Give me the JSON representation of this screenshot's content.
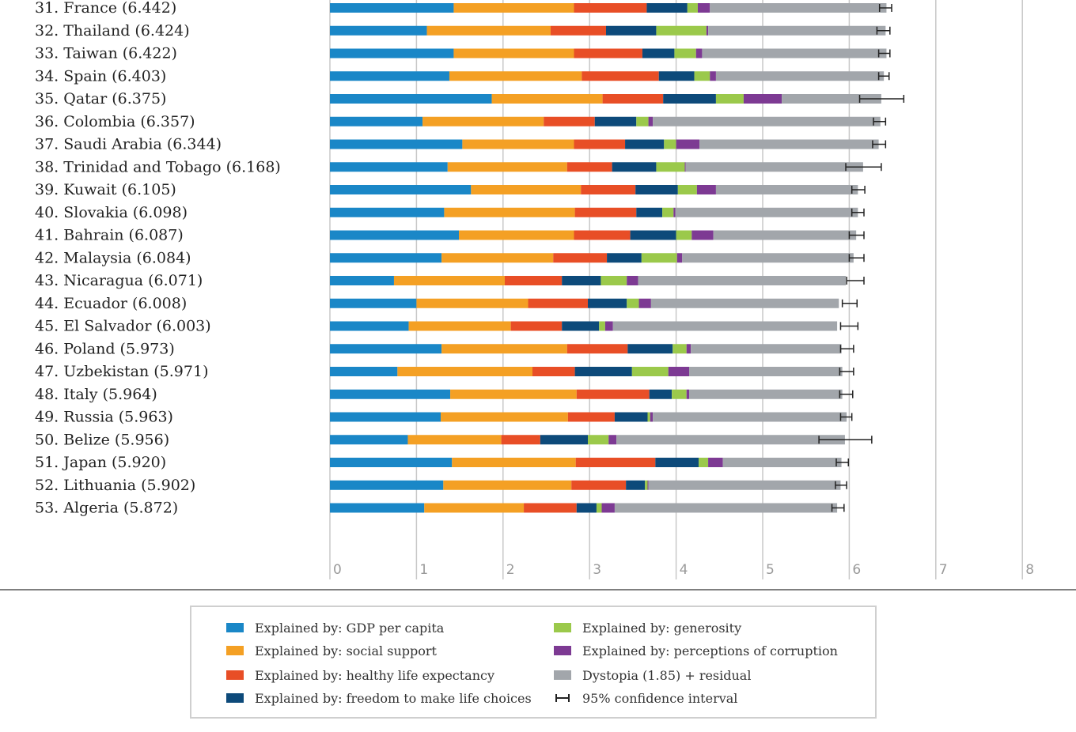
{
  "colors": {
    "gdp": "#1a87c7",
    "social": "#f4a024",
    "health": "#e84e26",
    "freedom": "#0d4a7a",
    "generosity": "#9bc94b",
    "corruption": "#7d3a93",
    "dystopia": "#a2a6ab",
    "ci": "#222222",
    "grid": "#c8c8c8",
    "axis_line": "#555555"
  },
  "chart_data": {
    "type": "bar",
    "orientation": "horizontal",
    "stacked": true,
    "xlim": [
      0,
      8
    ],
    "x_ticks": [
      "0",
      "1",
      "2",
      "3",
      "4",
      "5",
      "6",
      "7",
      "8"
    ],
    "grid": true,
    "legend_position": "bottom",
    "series_keys": [
      "gdp",
      "social",
      "health",
      "freedom",
      "generosity",
      "corruption",
      "dystopia"
    ],
    "countries": [
      {
        "label": "31.  France (6.442)",
        "score": 6.442,
        "ci": [
          6.35,
          6.49
        ],
        "values": [
          1.43,
          1.39,
          0.84,
          0.47,
          0.12,
          0.14,
          2.04
        ]
      },
      {
        "label": "32.  Thailand (6.424)",
        "score": 6.424,
        "ci": [
          6.32,
          6.47
        ],
        "values": [
          1.12,
          1.43,
          0.64,
          0.58,
          0.58,
          0.02,
          2.05
        ]
      },
      {
        "label": "33.  Taiwan (6.422)",
        "score": 6.422,
        "ci": [
          6.34,
          6.47
        ],
        "values": [
          1.43,
          1.39,
          0.79,
          0.37,
          0.25,
          0.07,
          2.13
        ]
      },
      {
        "label": "34.  Spain (6.403)",
        "score": 6.403,
        "ci": [
          6.34,
          6.46
        ],
        "values": [
          1.38,
          1.53,
          0.89,
          0.41,
          0.18,
          0.07,
          1.94
        ]
      },
      {
        "label": "35.  Qatar (6.375)",
        "score": 6.375,
        "ci": [
          6.12,
          6.63
        ],
        "values": [
          1.87,
          1.28,
          0.7,
          0.61,
          0.32,
          0.44,
          1.15
        ]
      },
      {
        "label": "36.  Colombia (6.357)",
        "score": 6.357,
        "ci": [
          6.28,
          6.42
        ],
        "values": [
          1.07,
          1.4,
          0.59,
          0.48,
          0.14,
          0.05,
          2.63
        ]
      },
      {
        "label": "37.  Saudi Arabia (6.344)",
        "score": 6.344,
        "ci": [
          6.27,
          6.42
        ],
        "values": [
          1.53,
          1.29,
          0.59,
          0.45,
          0.14,
          0.27,
          2.07
        ]
      },
      {
        "label": "38.  Trinidad and Tobago (6.168)",
        "score": 6.168,
        "ci": [
          5.96,
          6.37
        ],
        "values": [
          1.36,
          1.38,
          0.52,
          0.51,
          0.33,
          0.01,
          2.05
        ]
      },
      {
        "label": "39.  Kuwait (6.105)",
        "score": 6.105,
        "ci": [
          6.03,
          6.18
        ],
        "values": [
          1.63,
          1.27,
          0.63,
          0.49,
          0.22,
          0.22,
          1.64
        ]
      },
      {
        "label": "40.  Slovakia (6.098)",
        "score": 6.098,
        "ci": [
          6.03,
          6.17
        ],
        "values": [
          1.32,
          1.51,
          0.71,
          0.3,
          0.13,
          0.02,
          2.11
        ]
      },
      {
        "label": "41.  Bahrain (6.087)",
        "score": 6.087,
        "ci": [
          6.0,
          6.17
        ],
        "values": [
          1.49,
          1.33,
          0.65,
          0.53,
          0.18,
          0.25,
          1.65
        ]
      },
      {
        "label": "42.  Malaysia (6.084)",
        "score": 6.084,
        "ci": [
          6.0,
          6.17
        ],
        "values": [
          1.29,
          1.29,
          0.62,
          0.4,
          0.41,
          0.06,
          1.98
        ]
      },
      {
        "label": "43.  Nicaragua (6.071)",
        "score": 6.071,
        "ci": [
          5.97,
          6.17
        ],
        "values": [
          0.74,
          1.28,
          0.66,
          0.45,
          0.3,
          0.13,
          2.4
        ]
      },
      {
        "label": "44.  Ecuador (6.008)",
        "score": 6.008,
        "ci": [
          5.92,
          6.09
        ],
        "values": [
          1.0,
          1.29,
          0.69,
          0.45,
          0.14,
          0.14,
          2.17
        ]
      },
      {
        "label": "45.  El Salvador (6.003)",
        "score": 6.003,
        "ci": [
          5.9,
          6.1
        ],
        "values": [
          0.91,
          1.18,
          0.59,
          0.43,
          0.07,
          0.09,
          2.59
        ]
      },
      {
        "label": "46.  Poland (5.973)",
        "score": 5.973,
        "ci": [
          5.9,
          6.05
        ],
        "values": [
          1.29,
          1.45,
          0.7,
          0.52,
          0.16,
          0.05,
          1.74
        ]
      },
      {
        "label": "47.  Uzbekistan (5.971)",
        "score": 5.971,
        "ci": [
          5.89,
          6.05
        ],
        "values": [
          0.78,
          1.56,
          0.49,
          0.66,
          0.42,
          0.24,
          1.77
        ]
      },
      {
        "label": "48.  Italy (5.964)",
        "score": 5.964,
        "ci": [
          5.89,
          6.04
        ],
        "values": [
          1.39,
          1.46,
          0.84,
          0.26,
          0.17,
          0.03,
          1.77
        ]
      },
      {
        "label": "49.  Russia (5.963)",
        "score": 5.963,
        "ci": [
          5.9,
          6.03
        ],
        "values": [
          1.28,
          1.47,
          0.54,
          0.38,
          0.03,
          0.03,
          2.24
        ]
      },
      {
        "label": "50.  Belize (5.956)",
        "score": 5.956,
        "ci": [
          5.65,
          6.26
        ],
        "values": [
          0.9,
          1.08,
          0.45,
          0.55,
          0.24,
          0.09,
          2.64
        ]
      },
      {
        "label": "51.  Japan (5.920)",
        "score": 5.92,
        "ci": [
          5.85,
          5.99
        ],
        "values": [
          1.41,
          1.43,
          0.92,
          0.5,
          0.11,
          0.17,
          1.37
        ]
      },
      {
        "label": "52.  Lithuania (5.902)",
        "score": 5.902,
        "ci": [
          5.84,
          5.97
        ],
        "values": [
          1.31,
          1.48,
          0.63,
          0.22,
          0.03,
          0.01,
          2.22
        ]
      },
      {
        "label": "53.  Algeria (5.872)",
        "score": 5.872,
        "ci": [
          5.8,
          5.94
        ],
        "values": [
          1.09,
          1.15,
          0.61,
          0.23,
          0.06,
          0.15,
          2.57
        ]
      }
    ]
  },
  "legend": {
    "gdp": "Explained by: GDP per capita",
    "social": "Explained by: social support",
    "health": "Explained by: healthy life expectancy",
    "freedom": "Explained by: freedom to make life choices",
    "generosity": "Explained by: generosity",
    "corruption": "Explained by: perceptions of corruption",
    "dystopia": "Dystopia (1.85) + residual",
    "ci": "95% confidence interval"
  }
}
